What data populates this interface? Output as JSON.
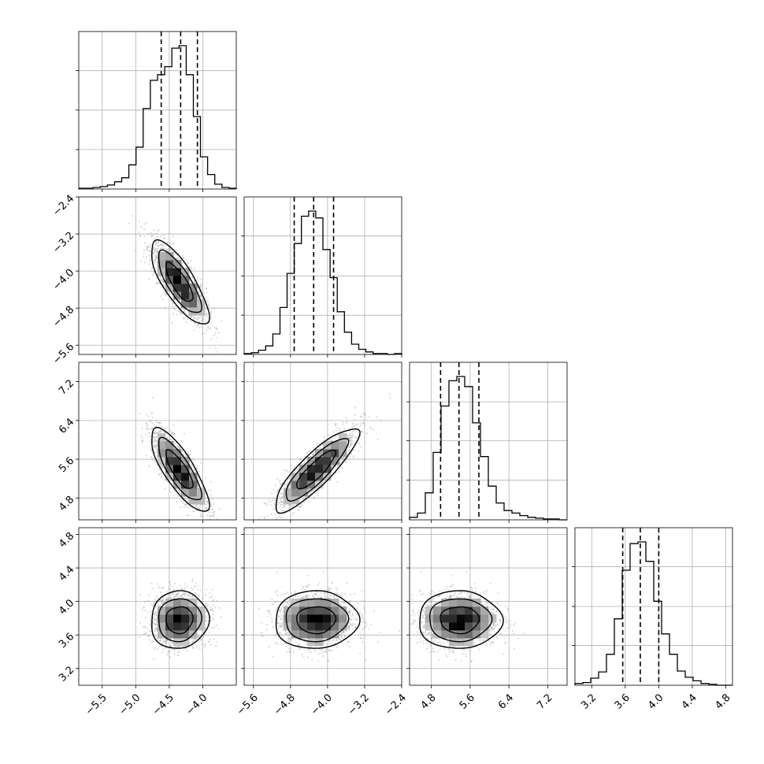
{
  "chart_data": {
    "type": "corner",
    "grid": true,
    "parameters": [
      {
        "range": [
          -5.85,
          -3.5
        ],
        "ticks": [
          -5.5,
          -5.0,
          -4.5,
          -4.0
        ],
        "tick_labels": [
          "−5.5",
          "−5.0",
          "−4.5",
          "−4.0"
        ]
      },
      {
        "range": [
          -5.8,
          -2.4
        ],
        "ticks": [
          -5.6,
          -4.8,
          -4.0,
          -3.2,
          -2.4
        ],
        "tick_labels": [
          "−5.6",
          "−4.8",
          "−4.0",
          "−3.2",
          "−2.4"
        ]
      },
      {
        "range": [
          4.35,
          7.6
        ],
        "ticks": [
          4.8,
          5.6,
          6.4,
          7.2
        ],
        "tick_labels": [
          "4.8",
          "5.6",
          "6.4",
          "7.2"
        ]
      },
      {
        "range": [
          3.0,
          4.88
        ],
        "ticks": [
          3.2,
          3.6,
          4.0,
          4.4,
          4.8
        ],
        "tick_labels": [
          "3.2",
          "3.6",
          "4.0",
          "4.4",
          "4.8"
        ]
      }
    ],
    "histograms": [
      {
        "counts": [
          1,
          1,
          2,
          3,
          5,
          9,
          14,
          30,
          52,
          100,
          135,
          142,
          152,
          175,
          178,
          142,
          90,
          40,
          18,
          6,
          2,
          1
        ],
        "quantiles": [
          -4.62,
          -4.33,
          -4.08
        ]
      },
      {
        "counts": [
          1,
          2,
          5,
          10,
          24,
          55,
          95,
          130,
          162,
          168,
          160,
          123,
          90,
          50,
          26,
          12,
          6,
          3,
          1,
          1,
          0,
          1
        ],
        "quantiles": [
          -4.72,
          -4.3,
          -3.87
        ]
      },
      {
        "counts": [
          3,
          8,
          32,
          80,
          135,
          165,
          170,
          158,
          115,
          75,
          40,
          20,
          11,
          8,
          5,
          3,
          2,
          1,
          1,
          0
        ],
        "quantiles": [
          4.99,
          5.37,
          5.78
        ]
      },
      {
        "counts": [
          2,
          3,
          8,
          15,
          35,
          75,
          130,
          160,
          162,
          140,
          95,
          58,
          35,
          16,
          9,
          5,
          2,
          1,
          0,
          0
        ],
        "quantiles": [
          3.57,
          3.78,
          4.0
        ]
      }
    ],
    "pairs": [
      {
        "x": 0,
        "y": 1,
        "mean": [
          -4.35,
          -4.25
        ],
        "sd": [
          0.2,
          0.42
        ],
        "corr": -0.78
      },
      {
        "x": 0,
        "y": 2,
        "mean": [
          -4.35,
          5.38
        ],
        "sd": [
          0.2,
          0.4
        ],
        "corr": -0.8
      },
      {
        "x": 1,
        "y": 2,
        "mean": [
          -4.25,
          5.38
        ],
        "sd": [
          0.42,
          0.4
        ],
        "corr": 0.86
      },
      {
        "x": 0,
        "y": 3,
        "mean": [
          -4.35,
          3.78
        ],
        "sd": [
          0.2,
          0.16
        ],
        "corr": 0.05
      },
      {
        "x": 1,
        "y": 3,
        "mean": [
          -4.25,
          3.78
        ],
        "sd": [
          0.42,
          0.16
        ],
        "corr": 0.02
      },
      {
        "x": 2,
        "y": 3,
        "mean": [
          5.38,
          3.78
        ],
        "sd": [
          0.4,
          0.16
        ],
        "corr": 0.0
      }
    ]
  }
}
